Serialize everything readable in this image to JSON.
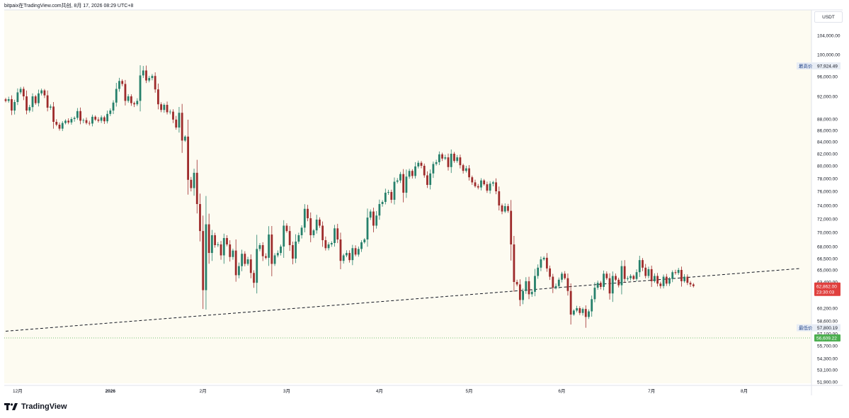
{
  "header": {
    "attribution": "bitpaix在TradingView.com共创, 8月 17, 2026 08:29 UTC+8"
  },
  "brand": {
    "name": "TradingView"
  },
  "price_axis": {
    "currency": "USDT"
  },
  "colors": {
    "background": "#fdfbf1",
    "up": "#26806b",
    "down": "#9e2b2b",
    "current_price_tag": "#e0403e",
    "low_tag": "#4caf50",
    "trendline": "#131722"
  },
  "chart_data": {
    "type": "candlestick",
    "title": "",
    "y_ticks": [
      104000,
      100000,
      96000,
      92000,
      88000,
      86000,
      84000,
      82000,
      80000,
      78000,
      76000,
      74000,
      72000,
      70000,
      68000,
      66500,
      65000,
      63400,
      60200,
      58600,
      55700,
      54300,
      53100,
      51900
    ],
    "y_tick_labels": [
      "104,000.00",
      "100,000.00",
      "96,000.00",
      "92,000.00",
      "88,000.00",
      "86,000.00",
      "84,000.00",
      "82,000.00",
      "80,000.00",
      "78,000.00",
      "76,000.00",
      "74,000.00",
      "72,000.00",
      "70,000.00",
      "68,000.00",
      "66,500.00",
      "65,000.00",
      "63,400.00",
      "60,200.00",
      "58,600.00",
      "55,700.00",
      "54,300.00",
      "53,100.00",
      "51,900.00"
    ],
    "x_ticks": [
      "12月",
      "2026",
      "2月",
      "3月",
      "4月",
      "5月",
      "6月",
      "7月",
      "8月"
    ],
    "x_tick_dates": [
      "2025-12-01",
      "2026-01-01",
      "2026-02-01",
      "2026-03-01",
      "2026-04-01",
      "2026-05-01",
      "2026-06-01",
      "2026-07-01",
      "2026-08-01"
    ],
    "start_date": "2025-11-27",
    "closes": [
      91200,
      91500,
      89500,
      91000,
      92800,
      93500,
      92000,
      89500,
      90100,
      92000,
      90800,
      92600,
      93200,
      92200,
      90000,
      90200,
      87500,
      87000,
      86300,
      87300,
      87700,
      87400,
      88000,
      88200,
      89400,
      87700,
      87800,
      87300,
      87200,
      88400,
      87900,
      87700,
      88300,
      87600,
      88900,
      89500,
      90900,
      93500,
      95100,
      94500,
      91200,
      92000,
      90800,
      90600,
      91200,
      96200,
      97100,
      95200,
      95700,
      96100,
      93400,
      90600,
      89600,
      90500,
      89200,
      89300,
      87900,
      86500,
      89100,
      84200,
      84900,
      77800,
      76500,
      78900,
      74200,
      70200,
      62400,
      71200,
      67200,
      69600,
      68200,
      68300,
      66900,
      69200,
      68300,
      66700,
      67500,
      64300,
      65500,
      67100,
      65800,
      66400,
      64600,
      63300,
      67700,
      68200,
      66800,
      66600,
      69700,
      65800,
      66900,
      67200,
      68000,
      71000,
      70200,
      68200,
      66500,
      68700,
      69600,
      70700,
      73500,
      72100,
      69600,
      70300,
      71900,
      71000,
      68900,
      67800,
      68300,
      68500,
      70600,
      69000,
      66200,
      66900,
      67200,
      66300,
      67800,
      67000,
      67700,
      68600,
      69000,
      72200,
      73100,
      71000,
      72500,
      74200,
      74500,
      75800,
      75900,
      74800,
      77500,
      77700,
      78700,
      75800,
      78300,
      79200,
      78400,
      79900,
      80500,
      80000,
      78500,
      77000,
      78800,
      80300,
      80600,
      81900,
      81200,
      81400,
      79800,
      82000,
      80800,
      81400,
      80100,
      79200,
      79600,
      78200,
      77400,
      76800,
      76600,
      77700,
      77100,
      76100,
      77200,
      77400,
      76000,
      74000,
      73100,
      73900,
      73200,
      68300,
      63400,
      63100,
      61200,
      62300,
      63500,
      61900,
      62200,
      64200,
      65300,
      66400,
      66600,
      65200,
      64100,
      62700,
      62900,
      63700,
      64500,
      63900,
      62300,
      59400,
      59900,
      60200,
      59600,
      60100,
      59100,
      59800,
      61300,
      62700,
      63300,
      62800,
      64500,
      63900,
      62000,
      64200,
      63700,
      63000,
      65500,
      63800,
      63900,
      64200,
      63800,
      64700,
      66300,
      65300,
      64200,
      65100,
      63500,
      64200,
      63200,
      62900,
      64100,
      63200,
      63800,
      64700,
      64600,
      65000,
      63500,
      64100,
      63300,
      63100,
      62900
    ],
    "trendline": {
      "style": "dashed",
      "from_price": 57400,
      "from_date": "2025-11-27",
      "to_price": 65200,
      "to_date": "2026-08-20"
    },
    "markers": {
      "high": {
        "label": "最高价",
        "value": "97,924.49"
      },
      "current": {
        "value": "62,862.00",
        "countdown": "23:30:03"
      },
      "low_label": {
        "label": "最低价",
        "value": "57,800.19"
      },
      "low_tag": {
        "value": "56,609.22",
        "hidden_label": "57,100.00"
      }
    }
  }
}
